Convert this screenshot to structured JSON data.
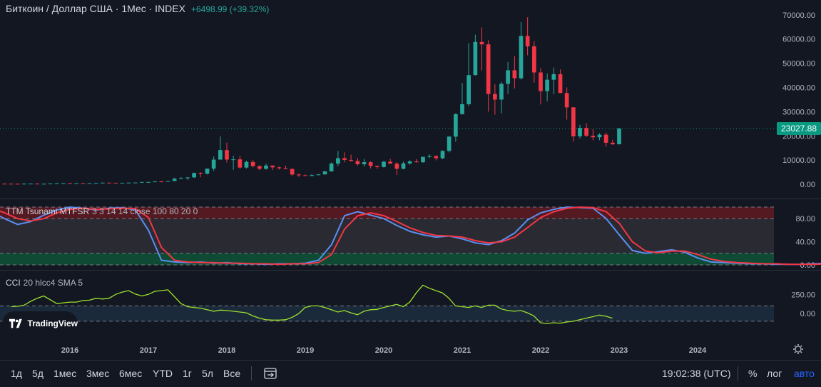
{
  "header": {
    "title": "Биткоин / Доллар США · 1Мес · INDEX",
    "change": "+6498.99 (+39.32%)"
  },
  "price_tag": "23027.88",
  "logo_text": "TradingView",
  "indicators": {
    "tsunami": {
      "name": "TTM Tsunami MTFSR",
      "params": "3 3 14 14 close 100 80 20 0"
    },
    "cci": {
      "name": "CCI",
      "params": "20 hlcc4 SMA 5"
    }
  },
  "timeframes": [
    "1д",
    "5д",
    "1мес",
    "3мес",
    "6мес",
    "YTD",
    "1г",
    "5л",
    "Все"
  ],
  "clock": "19:02:38 (UTC)",
  "bottom_right": {
    "percent": "%",
    "log": "лог",
    "auto": "авто"
  },
  "colors": {
    "bg": "#131722",
    "up": "#26a69a",
    "down": "#f23645",
    "blue": "#5b8ff0",
    "red": "#f23645",
    "cci": "#9be02e"
  },
  "chart_data": [
    {
      "type": "candlestick",
      "title": "Биткоин / Доллар США · 1Мес · INDEX",
      "ylim": [
        -3500,
        72000
      ],
      "yticks": [
        0,
        10000,
        20000,
        30000,
        40000,
        50000,
        60000,
        70000
      ],
      "ytick_labels": [
        "0.00",
        "10000.00",
        "20000.00",
        "30000.00",
        "40000.00",
        "50000.00",
        "60000.00",
        "70000.00"
      ],
      "xticks": [
        2016,
        2017,
        2018,
        2019,
        2020,
        2021,
        2022,
        2023,
        2024
      ],
      "last_price": 23027.88,
      "candles": [
        [
          2013.0,
          13,
          20,
          13,
          20
        ],
        [
          2013.083,
          20,
          33,
          20,
          33
        ],
        [
          2013.167,
          33,
          90,
          33,
          90
        ],
        [
          2013.25,
          90,
          260,
          70,
          139
        ],
        [
          2013.333,
          139,
          140,
          80,
          129
        ],
        [
          2013.417,
          129,
          130,
          90,
          97
        ],
        [
          2013.5,
          97,
          110,
          70,
          106
        ],
        [
          2013.583,
          106,
          140,
          100,
          135
        ],
        [
          2013.667,
          135,
          140,
          120,
          133
        ],
        [
          2013.75,
          133,
          210,
          110,
          204
        ],
        [
          2013.833,
          204,
          1150,
          200,
          1000
        ],
        [
          2013.917,
          1000,
          1160,
          500,
          760
        ],
        [
          2014.0,
          760,
          1000,
          700,
          830
        ],
        [
          2014.083,
          830,
          860,
          420,
          550
        ],
        [
          2014.167,
          550,
          700,
          450,
          460
        ],
        [
          2014.25,
          460,
          560,
          340,
          445
        ],
        [
          2014.333,
          445,
          630,
          420,
          630
        ],
        [
          2014.417,
          630,
          680,
          540,
          640
        ],
        [
          2014.5,
          640,
          650,
          570,
          580
        ],
        [
          2014.583,
          580,
          600,
          440,
          480
        ],
        [
          2014.667,
          480,
          490,
          370,
          390
        ],
        [
          2014.75,
          390,
          420,
          275,
          340
        ],
        [
          2014.833,
          340,
          440,
          320,
          380
        ],
        [
          2014.917,
          380,
          380,
          300,
          320
        ],
        [
          2015.0,
          320,
          320,
          170,
          217
        ],
        [
          2015.083,
          217,
          300,
          200,
          255
        ],
        [
          2015.167,
          255,
          300,
          230,
          245
        ],
        [
          2015.25,
          245,
          260,
          210,
          235
        ],
        [
          2015.333,
          235,
          245,
          220,
          230
        ],
        [
          2015.417,
          230,
          265,
          220,
          263
        ],
        [
          2015.5,
          263,
          315,
          250,
          285
        ],
        [
          2015.583,
          285,
          285,
          200,
          230
        ],
        [
          2015.667,
          230,
          240,
          220,
          236
        ],
        [
          2015.75,
          236,
          330,
          236,
          314
        ],
        [
          2015.833,
          314,
          500,
          310,
          377
        ],
        [
          2015.917,
          377,
          470,
          350,
          430
        ],
        [
          2016.0,
          430,
          460,
          350,
          370
        ],
        [
          2016.083,
          370,
          450,
          370,
          437
        ],
        [
          2016.167,
          437,
          440,
          400,
          416
        ],
        [
          2016.25,
          416,
          470,
          410,
          448
        ],
        [
          2016.333,
          448,
          550,
          440,
          530
        ],
        [
          2016.417,
          530,
          780,
          530,
          670
        ],
        [
          2016.5,
          670,
          700,
          600,
          624
        ],
        [
          2016.583,
          624,
          630,
          540,
          575
        ],
        [
          2016.667,
          575,
          610,
          570,
          609
        ],
        [
          2016.75,
          609,
          740,
          605,
          700
        ],
        [
          2016.833,
          700,
          750,
          690,
          742
        ],
        [
          2016.917,
          742,
          980,
          740,
          963
        ],
        [
          2017.0,
          963,
          1150,
          760,
          970
        ],
        [
          2017.083,
          970,
          1210,
          930,
          1190
        ],
        [
          2017.167,
          1190,
          1290,
          900,
          1080
        ],
        [
          2017.25,
          1080,
          1350,
          1080,
          1350
        ],
        [
          2017.333,
          1350,
          2760,
          1350,
          2300
        ],
        [
          2017.417,
          2300,
          3000,
          2300,
          2500
        ],
        [
          2017.5,
          2500,
          2920,
          1830,
          2870
        ],
        [
          2017.583,
          2870,
          4800,
          2700,
          4700
        ],
        [
          2017.667,
          4700,
          5000,
          2900,
          4340
        ],
        [
          2017.75,
          4340,
          6470,
          4100,
          6470
        ],
        [
          2017.833,
          6470,
          11500,
          5500,
          10200
        ],
        [
          2017.917,
          10200,
          19800,
          10200,
          14150
        ],
        [
          2018.0,
          14150,
          17200,
          9000,
          10230
        ],
        [
          2018.083,
          10230,
          11800,
          6000,
          10320
        ],
        [
          2018.167,
          10320,
          11700,
          6400,
          6930
        ],
        [
          2018.25,
          6930,
          9800,
          6500,
          9240
        ],
        [
          2018.333,
          9240,
          10000,
          7000,
          7500
        ],
        [
          2018.417,
          7500,
          7800,
          5800,
          6400
        ],
        [
          2018.5,
          6400,
          8500,
          6000,
          7740
        ],
        [
          2018.583,
          7740,
          7800,
          5900,
          7010
        ],
        [
          2018.667,
          7010,
          7400,
          6100,
          6630
        ],
        [
          2018.75,
          6630,
          7700,
          6200,
          6370
        ],
        [
          2018.833,
          6370,
          6500,
          3500,
          4040
        ],
        [
          2018.917,
          4040,
          4400,
          3100,
          3740
        ],
        [
          2019.0,
          3740,
          4100,
          3350,
          3460
        ],
        [
          2019.083,
          3460,
          4200,
          3400,
          3820
        ],
        [
          2019.167,
          3820,
          4100,
          3700,
          4100
        ],
        [
          2019.25,
          4100,
          5600,
          4000,
          5320
        ],
        [
          2019.333,
          5320,
          9000,
          5300,
          8560
        ],
        [
          2019.417,
          8560,
          13800,
          7500,
          10820
        ],
        [
          2019.5,
          10820,
          13200,
          9100,
          10080
        ],
        [
          2019.583,
          10080,
          12300,
          9400,
          9630
        ],
        [
          2019.667,
          9630,
          10900,
          7700,
          8290
        ],
        [
          2019.75,
          8290,
          10400,
          7300,
          9150
        ],
        [
          2019.833,
          9150,
          9500,
          6500,
          7560
        ],
        [
          2019.917,
          7560,
          7800,
          6400,
          7190
        ],
        [
          2020.0,
          7190,
          9600,
          6900,
          9350
        ],
        [
          2020.083,
          9350,
          10500,
          8500,
          8520
        ],
        [
          2020.167,
          8520,
          9200,
          3850,
          6410
        ],
        [
          2020.25,
          6410,
          9400,
          6200,
          8620
        ],
        [
          2020.333,
          8620,
          10000,
          8100,
          9450
        ],
        [
          2020.417,
          9450,
          10400,
          8900,
          9140
        ],
        [
          2020.5,
          9140,
          11400,
          8900,
          11340
        ],
        [
          2020.583,
          11340,
          12400,
          10900,
          11650
        ],
        [
          2020.667,
          11650,
          12000,
          9900,
          10780
        ],
        [
          2020.75,
          10780,
          14000,
          10400,
          13800
        ],
        [
          2020.833,
          13800,
          19900,
          13200,
          19700
        ],
        [
          2020.917,
          19700,
          29300,
          17600,
          28990
        ],
        [
          2021.0,
          28990,
          41900,
          28800,
          33100
        ],
        [
          2021.083,
          33100,
          58300,
          32300,
          45100
        ],
        [
          2021.167,
          45100,
          61800,
          45000,
          58800
        ],
        [
          2021.25,
          58800,
          64800,
          47000,
          57800
        ],
        [
          2021.333,
          57800,
          59500,
          30000,
          37300
        ],
        [
          2021.417,
          37300,
          41300,
          28800,
          35000
        ],
        [
          2021.5,
          35000,
          42300,
          29300,
          41500
        ],
        [
          2021.583,
          41500,
          50500,
          37300,
          47100
        ],
        [
          2021.667,
          47100,
          52900,
          39600,
          43800
        ],
        [
          2021.75,
          43800,
          67000,
          43300,
          61300
        ],
        [
          2021.833,
          61300,
          69000,
          53300,
          57000
        ],
        [
          2021.917,
          57000,
          59100,
          42000,
          46200
        ],
        [
          2022.0,
          46200,
          48000,
          33000,
          38500
        ],
        [
          2022.083,
          38500,
          45800,
          34300,
          43200
        ],
        [
          2022.167,
          43200,
          48200,
          37200,
          45500
        ],
        [
          2022.25,
          45500,
          47400,
          37700,
          37700
        ],
        [
          2022.333,
          37700,
          40000,
          26700,
          31800
        ],
        [
          2022.417,
          31800,
          31900,
          17600,
          19800
        ],
        [
          2022.5,
          19800,
          24600,
          18800,
          23300
        ],
        [
          2022.583,
          23300,
          25200,
          19600,
          20050
        ],
        [
          2022.667,
          20050,
          22800,
          18200,
          19430
        ],
        [
          2022.75,
          19430,
          21100,
          18200,
          20500
        ],
        [
          2022.833,
          20500,
          21400,
          15500,
          17170
        ],
        [
          2022.917,
          17170,
          18400,
          16300,
          16530
        ],
        [
          2023.0,
          16530,
          23300,
          16500,
          23030
        ]
      ]
    },
    {
      "type": "line",
      "name": "TTM Tsunami MTFSR",
      "ylim": [
        -2,
        103
      ],
      "yticks": [
        0,
        40,
        80
      ],
      "ytick_labels": [
        "0.00",
        "40.00",
        "80.00"
      ],
      "bands": [
        80,
        100,
        0,
        20
      ],
      "x_start": 2013.0,
      "x_step": 0.1667,
      "series": [
        {
          "name": "blue",
          "values": [
            3,
            6,
            8,
            9,
            14,
            18,
            40,
            80,
            100,
            95,
            90,
            100,
            92,
            80,
            70,
            75,
            86,
            95,
            100,
            98,
            95,
            98,
            99,
            95,
            60,
            8,
            5,
            4,
            5,
            3,
            4,
            2,
            2,
            1,
            2,
            2,
            3,
            8,
            35,
            85,
            92,
            86,
            80,
            68,
            58,
            52,
            48,
            50,
            45,
            38,
            35,
            42,
            55,
            78,
            90,
            96,
            100,
            99,
            98,
            80,
            52,
            25,
            20,
            23,
            26,
            22,
            12,
            5,
            4,
            3,
            2,
            2,
            1,
            1,
            1,
            2,
            3,
            12
          ]
        },
        {
          "name": "red",
          "values": [
            1,
            3,
            5,
            7,
            10,
            15,
            25,
            60,
            88,
            98,
            92,
            96,
            98,
            90,
            80,
            76,
            80,
            90,
            96,
            98,
            96,
            97,
            98,
            97,
            82,
            30,
            8,
            5,
            4,
            4,
            3,
            3,
            2,
            2,
            1,
            2,
            2,
            4,
            18,
            62,
            85,
            90,
            85,
            75,
            64,
            56,
            51,
            50,
            48,
            42,
            38,
            40,
            48,
            65,
            82,
            92,
            98,
            100,
            99,
            92,
            72,
            40,
            24,
            21,
            24,
            24,
            18,
            10,
            6,
            4,
            3,
            2,
            2,
            1,
            1,
            1,
            2,
            5
          ]
        }
      ]
    },
    {
      "type": "line",
      "name": "CCI",
      "ylim": [
        -250,
        430
      ],
      "yticks": [
        0,
        250
      ],
      "ytick_labels": [
        "0.00",
        "250.00"
      ],
      "bands": [
        100,
        -100
      ],
      "x_start": 2015.25,
      "x_step": 0.0833,
      "series": [
        {
          "name": "CCI",
          "values": [
            90,
            95,
            110,
            160,
            200,
            230,
            180,
            130,
            140,
            150,
            150,
            170,
            175,
            200,
            190,
            200,
            250,
            280,
            300,
            255,
            230,
            250,
            290,
            300,
            310,
            220,
            130,
            90,
            80,
            70,
            50,
            30,
            45,
            40,
            30,
            20,
            10,
            -30,
            -60,
            -80,
            -85,
            -85,
            -80,
            -50,
            0,
            80,
            100,
            100,
            80,
            50,
            20,
            40,
            10,
            -15,
            30,
            50,
            55,
            80,
            100,
            120,
            90,
            150,
            270,
            370,
            330,
            300,
            270,
            200,
            100,
            90,
            80,
            100,
            80,
            110,
            110,
            60,
            40,
            30,
            40,
            10,
            -30,
            -120,
            -130,
            -120,
            -125,
            -110,
            -100,
            -80,
            -60,
            -40,
            -20,
            -35,
            -60
          ]
        }
      ]
    }
  ]
}
